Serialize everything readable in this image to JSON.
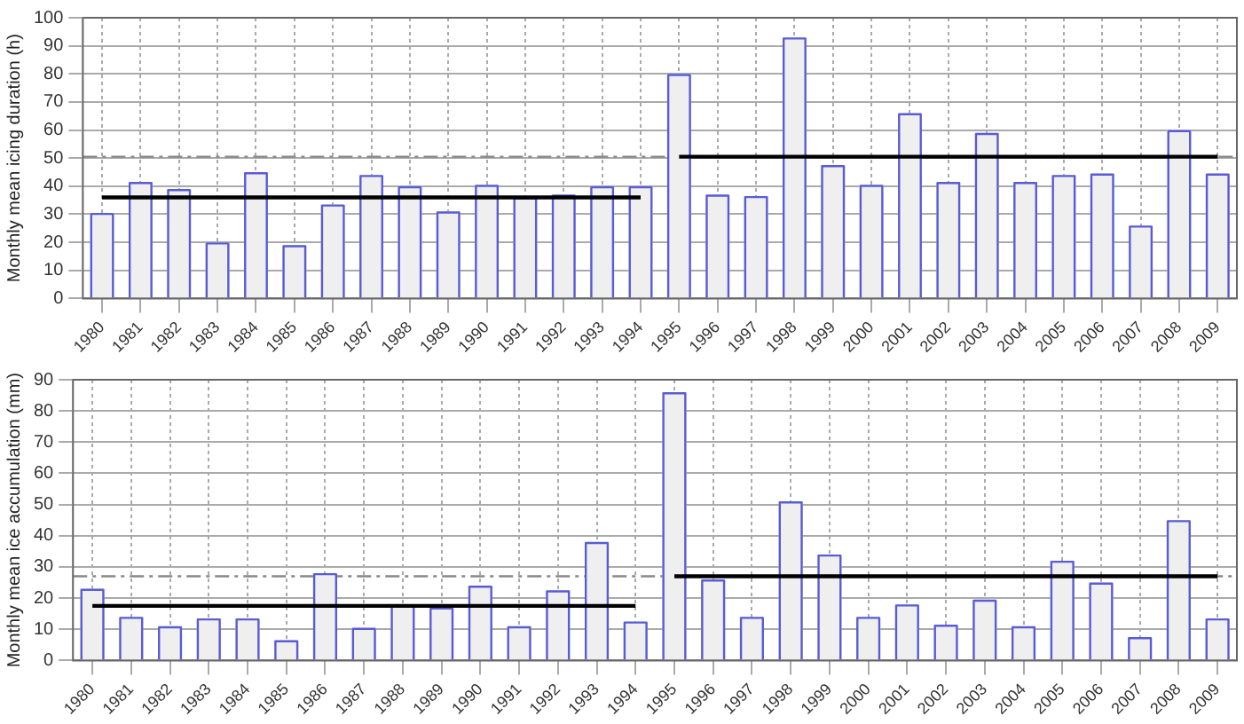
{
  "chart_data": [
    {
      "type": "bar",
      "ylabel": "Monthly mean icing duration (h)",
      "categories": [
        "1980",
        "1981",
        "1982",
        "1983",
        "1984",
        "1985",
        "1986",
        "1987",
        "1988",
        "1989",
        "1990",
        "1991",
        "1992",
        "1993",
        "1994",
        "1995",
        "1996",
        "1997",
        "1998",
        "1999",
        "2000",
        "2001",
        "2002",
        "2003",
        "2004",
        "2005",
        "2006",
        "2007",
        "2008",
        "2009"
      ],
      "series": [
        {
          "color": "#efefef",
          "values": [
            30.5,
            41.5,
            39,
            20,
            45,
            19,
            33.5,
            44,
            40,
            31,
            40.5,
            36,
            37,
            40,
            40,
            80,
            37,
            36.5,
            93,
            47.5,
            40.5,
            66,
            41.5,
            59,
            41.5,
            44,
            44.5,
            26,
            60,
            44.5
          ]
        },
        {
          "type": "line",
          "color": "#000000",
          "values": [
            36,
            36,
            36,
            36,
            36,
            36,
            36,
            36,
            36,
            36,
            36,
            36,
            36,
            36,
            36,
            null,
            null,
            null,
            null,
            null,
            null,
            null,
            null,
            null,
            null,
            null,
            null,
            null,
            null,
            null
          ]
        },
        {
          "type": "line",
          "color": "#000000",
          "values": [
            null,
            null,
            null,
            null,
            null,
            null,
            null,
            null,
            null,
            null,
            null,
            null,
            null,
            null,
            null,
            50.5,
            50.5,
            50.5,
            50.5,
            50.5,
            50.5,
            50.5,
            50.5,
            50.5,
            50.5,
            50.5,
            50.5,
            50.5,
            50.5,
            50.5
          ]
        }
      ],
      "ref_lines": [
        {
          "axis": "y",
          "value": 50.5,
          "color": "#888888",
          "line_style": "dashed"
        }
      ],
      "ylim": [
        0,
        100
      ],
      "yticks": [
        0,
        10,
        20,
        30,
        40,
        50,
        60,
        70,
        80,
        90,
        100
      ],
      "grid": true,
      "marker": "none"
    },
    {
      "type": "bar",
      "ylabel": "Monthly mean ice accumulation (mm)",
      "categories": [
        "1980",
        "1981",
        "1982",
        "1983",
        "1984",
        "1985",
        "1986",
        "1987",
        "1988",
        "1989",
        "1990",
        "1991",
        "1992",
        "1993",
        "1994",
        "1995",
        "1996",
        "1997",
        "1998",
        "1999",
        "2000",
        "2001",
        "2002",
        "2003",
        "2004",
        "2005",
        "2006",
        "2007",
        "2008",
        "2009"
      ],
      "series": [
        {
          "color": "#efefef",
          "values": [
            23,
            14,
            11,
            13.5,
            13.5,
            6.5,
            28,
            10.5,
            18,
            17,
            24,
            11,
            22.5,
            38,
            12.5,
            86,
            26,
            14,
            51,
            34,
            14,
            18,
            11.5,
            19.5,
            11,
            32,
            25,
            7.5,
            45,
            13.5
          ]
        },
        {
          "type": "line",
          "color": "#000000",
          "values": [
            17.5,
            17.5,
            17.5,
            17.5,
            17.5,
            17.5,
            17.5,
            17.5,
            17.5,
            17.5,
            17.5,
            17.5,
            17.5,
            17.5,
            17.5,
            null,
            null,
            null,
            null,
            null,
            null,
            null,
            null,
            null,
            null,
            null,
            null,
            null,
            null,
            null
          ]
        },
        {
          "type": "line",
          "color": "#000000",
          "values": [
            null,
            null,
            null,
            null,
            null,
            null,
            null,
            null,
            null,
            null,
            null,
            null,
            null,
            null,
            null,
            27,
            27,
            27,
            27,
            27,
            27,
            27,
            27,
            27,
            27,
            27,
            27,
            27,
            27,
            27
          ]
        }
      ],
      "ref_lines": [
        {
          "axis": "y",
          "value": 27,
          "color": "#888888",
          "line_style": "dashed"
        }
      ],
      "ylim": [
        0,
        90
      ],
      "yticks": [
        0,
        10,
        20,
        30,
        40,
        50,
        60,
        70,
        80,
        90
      ],
      "grid": true,
      "marker": "none"
    }
  ]
}
